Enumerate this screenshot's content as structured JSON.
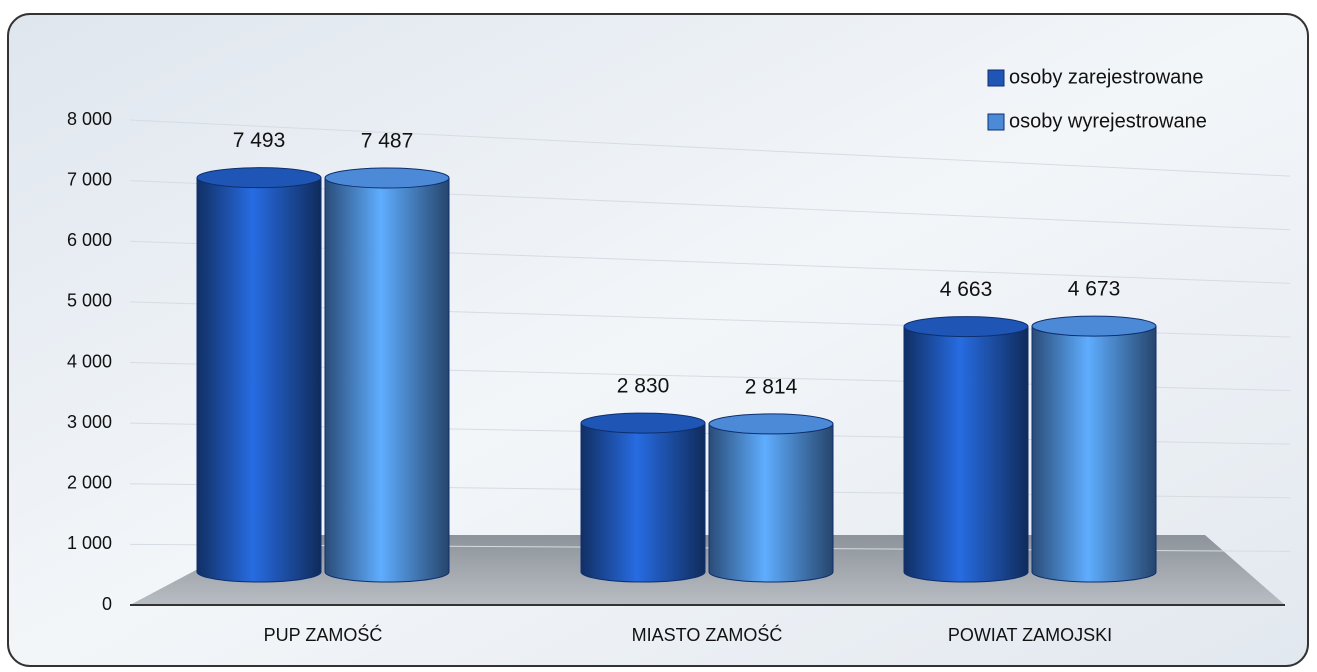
{
  "chart_data": {
    "type": "bar",
    "style": "cylinder",
    "categories": [
      "PUP ZAMOŚĆ",
      "MIASTO ZAMOŚĆ",
      "POWIAT ZAMOJSKI"
    ],
    "series": [
      {
        "name": "osoby zarejestrowane",
        "color": "#1f56b5",
        "values": [
          7493,
          2830,
          4663
        ],
        "value_labels": [
          "7 493",
          "2 830",
          "4 663"
        ]
      },
      {
        "name": "osoby wyrejestrowane",
        "color": "#4c8ad8",
        "values": [
          7487,
          2814,
          4673
        ],
        "value_labels": [
          "7 487",
          "2 814",
          "4 673"
        ]
      }
    ],
    "ylim": [
      0,
      8000
    ],
    "yticks": [
      {
        "value": 0,
        "label": "0"
      },
      {
        "value": 1000,
        "label": "1 000"
      },
      {
        "value": 2000,
        "label": "2 000"
      },
      {
        "value": 3000,
        "label": "3 000"
      },
      {
        "value": 4000,
        "label": "4 000"
      },
      {
        "value": 5000,
        "label": "5 000"
      },
      {
        "value": 6000,
        "label": "6 000"
      },
      {
        "value": 7000,
        "label": "7 000"
      },
      {
        "value": 8000,
        "label": "8 000"
      }
    ],
    "grid": true,
    "legend": "top-right"
  }
}
